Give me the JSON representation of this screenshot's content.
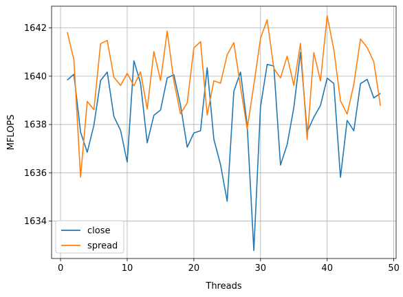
{
  "chart_data": {
    "type": "line",
    "xlabel": "Threads",
    "ylabel": "MFLOPS",
    "xlim": [
      -1.35,
      50.35
    ],
    "ylim": [
      1632.45,
      1642.9
    ],
    "xticks": [
      0,
      10,
      20,
      30,
      40,
      50
    ],
    "yticks": [
      1634,
      1636,
      1638,
      1640,
      1642
    ],
    "grid": true,
    "legend_position": "lower-left",
    "series": [
      {
        "name": "close",
        "color": "#1f77b4",
        "x": [
          1,
          2,
          3,
          4,
          5,
          6,
          7,
          8,
          9,
          10,
          11,
          12,
          13,
          14,
          15,
          16,
          17,
          18,
          19,
          20,
          21,
          22,
          23,
          24,
          25,
          26,
          27,
          28,
          29,
          30,
          31,
          32,
          33,
          34,
          35,
          36,
          37,
          38,
          39,
          40,
          41,
          42,
          43,
          44,
          45,
          46,
          47,
          48
        ],
        "y": [
          1639.84,
          1640.08,
          1637.69,
          1636.85,
          1637.97,
          1639.82,
          1640.17,
          1638.33,
          1637.76,
          1636.44,
          1640.64,
          1639.71,
          1637.24,
          1638.38,
          1638.6,
          1639.93,
          1640.06,
          1638.8,
          1637.06,
          1637.65,
          1637.74,
          1640.35,
          1637.39,
          1636.34,
          1634.82,
          1639.38,
          1640.17,
          1637.98,
          1632.78,
          1638.73,
          1640.49,
          1640.42,
          1636.32,
          1637.17,
          1638.7,
          1640.99,
          1637.7,
          1638.3,
          1638.79,
          1639.92,
          1639.7,
          1635.81,
          1638.17,
          1637.74,
          1639.69,
          1639.87,
          1639.1,
          1639.29
        ]
      },
      {
        "name": "spread",
        "color": "#ff7f0e",
        "x": [
          1,
          2,
          3,
          4,
          5,
          6,
          7,
          8,
          9,
          10,
          11,
          12,
          13,
          14,
          15,
          16,
          17,
          18,
          19,
          20,
          21,
          22,
          23,
          24,
          25,
          26,
          27,
          28,
          29,
          30,
          31,
          32,
          33,
          34,
          35,
          36,
          37,
          38,
          39,
          40,
          41,
          42,
          43,
          44,
          45,
          46,
          47,
          48
        ],
        "y": [
          1641.83,
          1640.68,
          1635.82,
          1638.96,
          1638.61,
          1641.35,
          1641.48,
          1639.96,
          1639.62,
          1640.12,
          1639.6,
          1640.18,
          1638.64,
          1641.02,
          1639.82,
          1641.87,
          1639.79,
          1638.44,
          1638.89,
          1641.17,
          1641.43,
          1638.39,
          1639.81,
          1639.71,
          1640.89,
          1641.39,
          1639.55,
          1637.82,
          1639.64,
          1641.57,
          1642.34,
          1640.32,
          1639.93,
          1640.83,
          1639.62,
          1641.36,
          1637.37,
          1640.98,
          1639.8,
          1642.5,
          1641.11,
          1638.98,
          1638.43,
          1639.66,
          1641.54,
          1641.19,
          1640.6,
          1638.77
        ]
      }
    ]
  }
}
